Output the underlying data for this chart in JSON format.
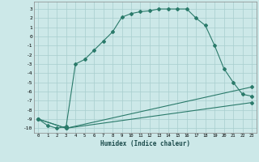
{
  "title": "",
  "xlabel": "Humidex (Indice chaleur)",
  "bg_color": "#cce8e8",
  "grid_color": "#a8cece",
  "line_color": "#2a7a6a",
  "xlim": [
    -0.5,
    23.5
  ],
  "ylim": [
    -10.5,
    3.8
  ],
  "yticks": [
    3,
    2,
    1,
    0,
    -1,
    -2,
    -3,
    -4,
    -5,
    -6,
    -7,
    -8,
    -9,
    -10
  ],
  "xticks": [
    0,
    1,
    2,
    3,
    4,
    5,
    6,
    7,
    8,
    9,
    10,
    11,
    12,
    13,
    14,
    15,
    16,
    17,
    18,
    19,
    20,
    21,
    22,
    23
  ],
  "line1_x": [
    0,
    1,
    2,
    3,
    4,
    5,
    6,
    7,
    8,
    9,
    10,
    11,
    12,
    13,
    14,
    15,
    16,
    17,
    18,
    19,
    20,
    21,
    22,
    23
  ],
  "line1_y": [
    -9,
    -9.7,
    -10,
    -9.8,
    -3,
    -2.5,
    -1.5,
    -0.5,
    0.5,
    2.1,
    2.5,
    2.7,
    2.8,
    3.0,
    3.0,
    3.0,
    3.0,
    2.0,
    1.2,
    -1.0,
    -3.5,
    -5.0,
    -6.3,
    -6.5
  ],
  "line2_x": [
    0,
    3,
    23
  ],
  "line2_y": [
    -9,
    -10,
    -7.2
  ],
  "line3_x": [
    0,
    3,
    23
  ],
  "line3_y": [
    -9,
    -10,
    -5.5
  ]
}
